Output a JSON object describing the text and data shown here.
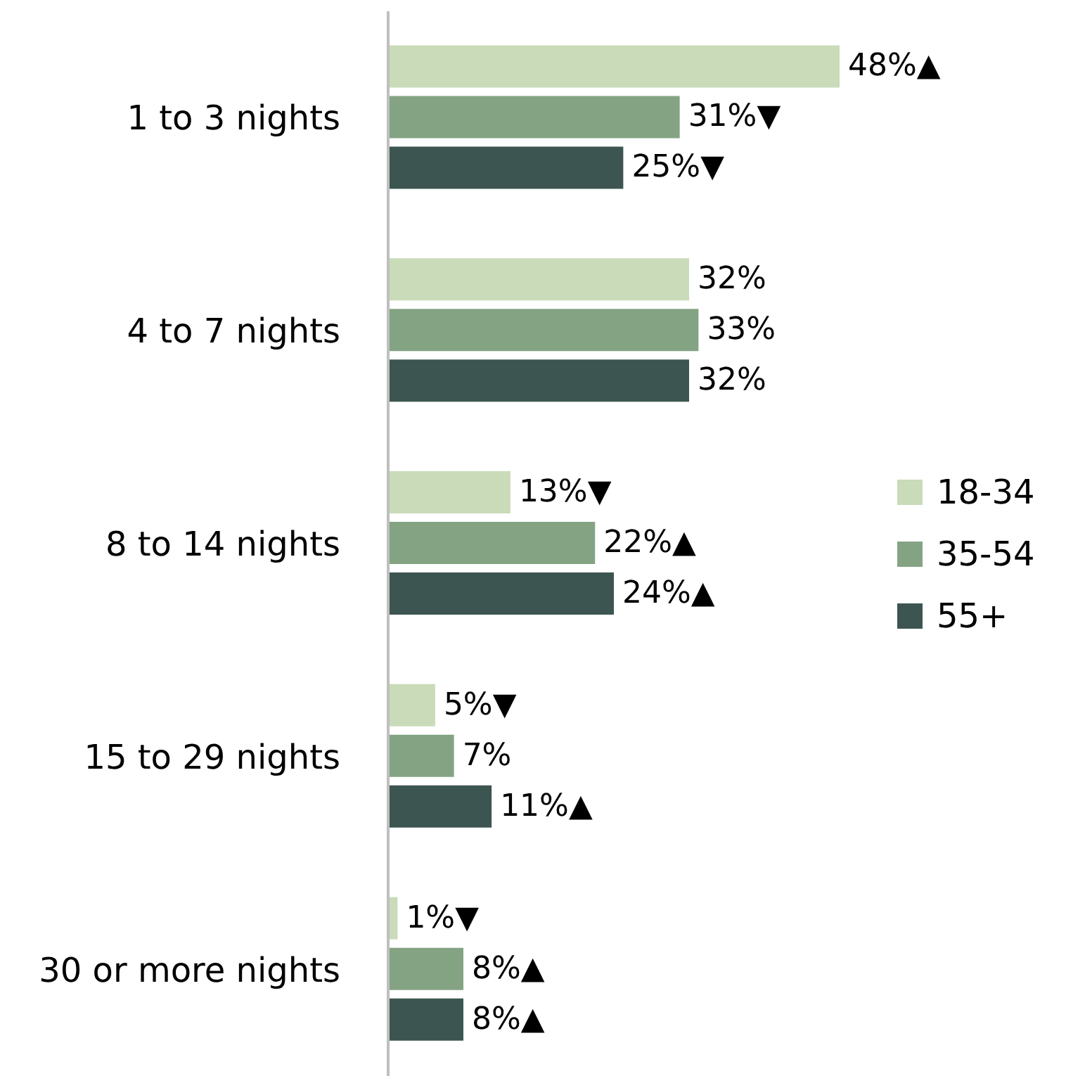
{
  "chart_data": {
    "type": "bar",
    "orientation": "horizontal",
    "categories": [
      "1 to 3 nights",
      "4 to 7 nights",
      "8 to 14 nights",
      "15 to 29 nights",
      "30 or more nights"
    ],
    "series": [
      {
        "name": "18-34",
        "color": "#c9dbb9",
        "values": [
          48,
          32,
          13,
          5,
          1
        ],
        "value_labels": [
          "48%▲",
          "32%",
          "13%▼",
          "5%▼",
          "1%▼"
        ]
      },
      {
        "name": "35-54",
        "color": "#84a383",
        "values": [
          31,
          33,
          22,
          7,
          8
        ],
        "value_labels": [
          "31%▼",
          "33%",
          "22%▲",
          "7%",
          "8%▲"
        ]
      },
      {
        "name": "55+",
        "color": "#3d5550",
        "values": [
          25,
          32,
          24,
          11,
          8
        ],
        "value_labels": [
          "25%▼",
          "32%",
          "24%▲",
          "11%▲",
          "8%▲"
        ]
      }
    ],
    "legend": "right",
    "grid": false
  }
}
